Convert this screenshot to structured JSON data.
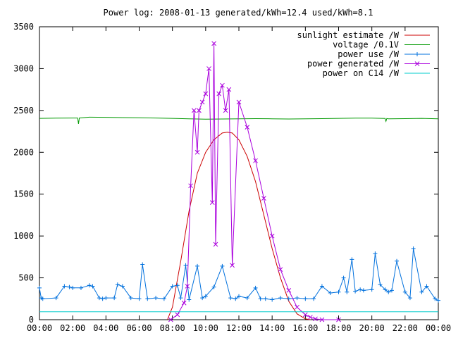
{
  "chart_data": {
    "type": "line",
    "title": "Power log: 2008-01-13 generated/kWh=12.4 used/kWh=8.1",
    "xlabel": "",
    "ylabel": "",
    "xlim": [
      0,
      24
    ],
    "ylim": [
      0,
      3500
    ],
    "x_ticks": [
      "00:00",
      "02:00",
      "04:00",
      "06:00",
      "08:00",
      "10:00",
      "12:00",
      "14:00",
      "16:00",
      "18:00",
      "20:00",
      "22:00",
      "00:00"
    ],
    "y_ticks": [
      "0",
      "500",
      "1000",
      "1500",
      "2000",
      "2500",
      "3000",
      "3500"
    ],
    "grid": false,
    "legend_position": "top-right",
    "series": [
      {
        "name": "sunlight estimate /W",
        "color": "#cc0000",
        "marker": "none",
        "x": [
          7.7,
          8.0,
          8.5,
          9.0,
          9.5,
          10.0,
          10.5,
          11.0,
          11.3,
          11.6,
          12.0,
          12.5,
          13.0,
          13.5,
          14.0,
          14.5,
          15.0,
          15.5,
          16.0,
          16.3
        ],
        "y": [
          0,
          150,
          700,
          1300,
          1750,
          2000,
          2150,
          2230,
          2240,
          2230,
          2150,
          1950,
          1650,
          1250,
          850,
          500,
          220,
          70,
          10,
          0
        ]
      },
      {
        "name": "voltage /0.1V",
        "color": "#009900",
        "marker": "none",
        "x": [
          0,
          1,
          2,
          2.3,
          2.35,
          2.4,
          3,
          4,
          5,
          6,
          7,
          8,
          9,
          10,
          11,
          12,
          13,
          14,
          15,
          16,
          17,
          18,
          19,
          20,
          20.8,
          20.85,
          20.9,
          21,
          22,
          23,
          24
        ],
        "y": [
          2405,
          2408,
          2410,
          2410,
          2340,
          2410,
          2420,
          2418,
          2415,
          2412,
          2410,
          2405,
          2400,
          2395,
          2398,
          2400,
          2402,
          2400,
          2398,
          2400,
          2402,
          2405,
          2408,
          2408,
          2404,
          2370,
          2404,
          2400,
          2402,
          2405,
          2400
        ]
      },
      {
        "name": "power use /W",
        "color": "#0070dd",
        "marker": "plus",
        "x": [
          0,
          0.1,
          0.2,
          1.0,
          1.5,
          1.8,
          2.0,
          2.5,
          3.0,
          3.2,
          3.6,
          3.8,
          4.0,
          4.5,
          4.7,
          5.0,
          5.5,
          6.0,
          6.2,
          6.5,
          7.0,
          7.5,
          8.0,
          8.3,
          8.5,
          8.8,
          9.0,
          9.5,
          9.8,
          10.0,
          10.5,
          11.0,
          11.5,
          11.8,
          12.0,
          12.5,
          13.0,
          13.3,
          13.6,
          14.0,
          14.5,
          15.0,
          15.5,
          16.0,
          16.5,
          17.0,
          17.5,
          18.0,
          18.3,
          18.5,
          18.8,
          19.0,
          19.3,
          19.5,
          20.0,
          20.2,
          20.5,
          20.8,
          21.0,
          21.2,
          21.5,
          22.0,
          22.3,
          22.5,
          23.0,
          23.3,
          23.8,
          24.0
        ],
        "y": [
          380,
          260,
          250,
          260,
          400,
          390,
          380,
          380,
          410,
          400,
          260,
          250,
          260,
          260,
          420,
          400,
          260,
          250,
          660,
          250,
          260,
          250,
          400,
          410,
          260,
          650,
          240,
          640,
          260,
          280,
          390,
          640,
          260,
          250,
          280,
          260,
          380,
          250,
          250,
          240,
          260,
          250,
          260,
          250,
          250,
          400,
          320,
          330,
          500,
          330,
          720,
          340,
          360,
          350,
          360,
          790,
          420,
          360,
          330,
          350,
          700,
          330,
          260,
          850,
          330,
          400,
          250,
          230
        ]
      },
      {
        "name": "power generated /W",
        "color": "#aa00dd",
        "marker": "x",
        "x": [
          7.9,
          8.3,
          8.7,
          8.9,
          9.1,
          9.3,
          9.5,
          9.6,
          9.8,
          10.0,
          10.2,
          10.4,
          10.5,
          10.6,
          10.8,
          11.0,
          11.2,
          11.4,
          11.6,
          12.0,
          12.5,
          13.0,
          13.5,
          14.0,
          14.5,
          15.0,
          15.5,
          16.0,
          16.3,
          16.6,
          17.0,
          18.0
        ],
        "y": [
          0,
          60,
          200,
          400,
          1600,
          2500,
          2000,
          2500,
          2600,
          2700,
          3000,
          1400,
          3300,
          900,
          2700,
          2800,
          2500,
          2750,
          650,
          2600,
          2300,
          1900,
          1450,
          1000,
          600,
          350,
          150,
          60,
          30,
          10,
          0,
          0
        ]
      },
      {
        "name": "power on C14 /W",
        "color": "#00cccc",
        "marker": "none",
        "x": [
          0,
          6,
          12,
          18,
          24
        ],
        "y": [
          95,
          95,
          95,
          95,
          95
        ]
      }
    ]
  }
}
